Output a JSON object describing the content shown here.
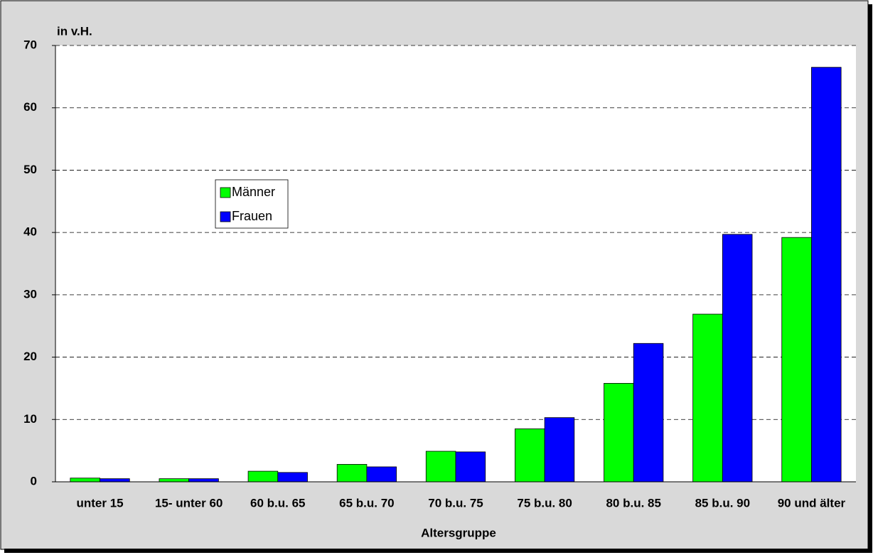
{
  "chart_data": {
    "type": "bar",
    "y_label": "in v.H.",
    "x_label": "Altersgruppe",
    "categories": [
      "unter 15",
      "15- unter 60",
      "60 b.u. 65",
      "65 b.u. 70",
      "70 b.u. 75",
      "75 b.u. 80",
      "80 b.u. 85",
      "85 b.u. 90",
      "90 und älter"
    ],
    "series": [
      {
        "name": "Männer",
        "color": "#00ff00",
        "values": [
          0.6,
          0.5,
          1.7,
          2.8,
          4.9,
          8.5,
          15.8,
          26.9,
          39.2
        ]
      },
      {
        "name": "Frauen",
        "color": "#0000ff",
        "values": [
          0.5,
          0.5,
          1.5,
          2.4,
          4.8,
          10.3,
          22.2,
          39.7,
          66.5
        ]
      }
    ],
    "ylim": [
      0,
      70
    ],
    "yticks": [
      0,
      10,
      20,
      30,
      40,
      50,
      60,
      70
    ],
    "grid": true
  }
}
